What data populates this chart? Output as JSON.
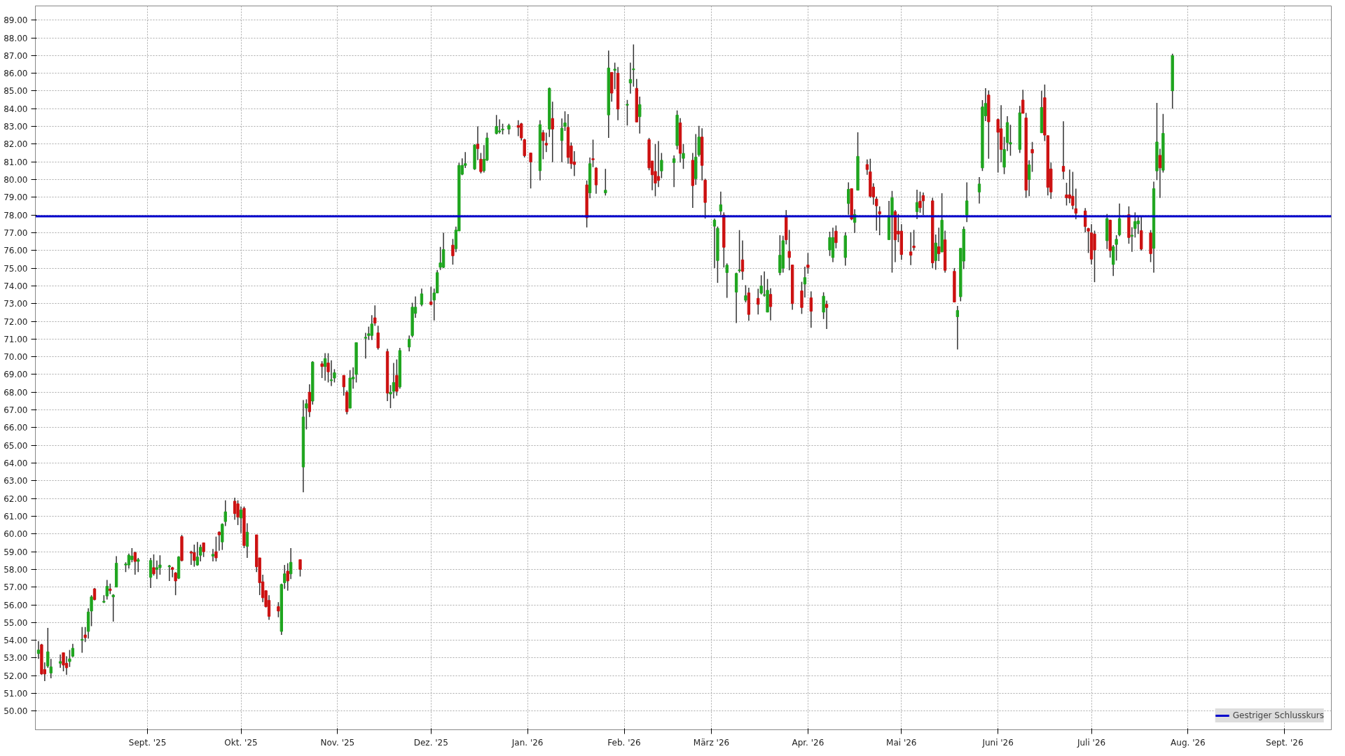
{
  "chart_data": {
    "type": "candlestick",
    "x": [
      "2025-07-28",
      "2025-07-29",
      "2025-07-30",
      "2025-07-31",
      "2025-08-01",
      "2025-08-04",
      "2025-08-05",
      "2025-08-06",
      "2025-08-07",
      "2025-08-08",
      "2025-08-11",
      "2025-08-12",
      "2025-08-13",
      "2025-08-14",
      "2025-08-15",
      "2025-08-18",
      "2025-08-19",
      "2025-08-20",
      "2025-08-21",
      "2025-08-22",
      "2025-08-25",
      "2025-08-26",
      "2025-08-27",
      "2025-08-28",
      "2025-08-29",
      "2025-09-02",
      "2025-09-03",
      "2025-09-04",
      "2025-09-05",
      "2025-09-08",
      "2025-09-09",
      "2025-09-10",
      "2025-09-11",
      "2025-09-12",
      "2025-09-15",
      "2025-09-16",
      "2025-09-17",
      "2025-09-18",
      "2025-09-19",
      "2025-09-22",
      "2025-09-23",
      "2025-09-24",
      "2025-09-25",
      "2025-09-26",
      "2025-09-29",
      "2025-09-30",
      "2025-10-01",
      "2025-10-02",
      "2025-10-03",
      "2025-10-06",
      "2025-10-07",
      "2025-10-08",
      "2025-10-09",
      "2025-10-10",
      "2025-10-13",
      "2025-10-14",
      "2025-10-15",
      "2025-10-16",
      "2025-10-17",
      "2025-10-20",
      "2025-10-21",
      "2025-10-22",
      "2025-10-23",
      "2025-10-24",
      "2025-10-27",
      "2025-10-28",
      "2025-10-29",
      "2025-10-30",
      "2025-10-31",
      "2025-11-03",
      "2025-11-04",
      "2025-11-05",
      "2025-11-06",
      "2025-11-07",
      "2025-11-10",
      "2025-11-11",
      "2025-11-12",
      "2025-11-13",
      "2025-11-14",
      "2025-11-17",
      "2025-11-18",
      "2025-11-19",
      "2025-11-20",
      "2025-11-21",
      "2025-11-24",
      "2025-11-25",
      "2025-11-26",
      "2025-11-28",
      "2025-12-01",
      "2025-12-02",
      "2025-12-03",
      "2025-12-04",
      "2025-12-05",
      "2025-12-08",
      "2025-12-09",
      "2025-12-10",
      "2025-12-11",
      "2025-12-12",
      "2025-12-15",
      "2025-12-16",
      "2025-12-17",
      "2025-12-18",
      "2025-12-19",
      "2025-12-22",
      "2025-12-23",
      "2025-12-24",
      "2025-12-26",
      "2025-12-29",
      "2025-12-30",
      "2025-12-31",
      "2026-01-02",
      "2026-01-05",
      "2026-01-06",
      "2026-01-07",
      "2026-01-08",
      "2026-01-09",
      "2026-01-12",
      "2026-01-13",
      "2026-01-14",
      "2026-01-15",
      "2026-01-16",
      "2026-01-20",
      "2026-01-21",
      "2026-01-22",
      "2026-01-23",
      "2026-01-26",
      "2026-01-27",
      "2026-01-28",
      "2026-01-29",
      "2026-01-30",
      "2026-02-02",
      "2026-02-03",
      "2026-02-04",
      "2026-02-05",
      "2026-02-06",
      "2026-02-09",
      "2026-02-10",
      "2026-02-11",
      "2026-02-12",
      "2026-02-13",
      "2026-02-17",
      "2026-02-18",
      "2026-02-19",
      "2026-02-20",
      "2026-02-23",
      "2026-02-24",
      "2026-02-25",
      "2026-02-26",
      "2026-02-27",
      "2026-03-02",
      "2026-03-03",
      "2026-03-04",
      "2026-03-05",
      "2026-03-06",
      "2026-03-09",
      "2026-03-10",
      "2026-03-11",
      "2026-03-12",
      "2026-03-13",
      "2026-03-16",
      "2026-03-17",
      "2026-03-18",
      "2026-03-19",
      "2026-03-20",
      "2026-03-23",
      "2026-03-24",
      "2026-03-25",
      "2026-03-26",
      "2026-03-27",
      "2026-03-30",
      "2026-03-31",
      "2026-04-01",
      "2026-04-02",
      "2026-04-06",
      "2026-04-07",
      "2026-04-08",
      "2026-04-09",
      "2026-04-10",
      "2026-04-13",
      "2026-04-14",
      "2026-04-15",
      "2026-04-16",
      "2026-04-17",
      "2026-04-20",
      "2026-04-21",
      "2026-04-22",
      "2026-04-23",
      "2026-04-24",
      "2026-04-27",
      "2026-04-28",
      "2026-04-29",
      "2026-04-30",
      "2026-05-01",
      "2026-05-04",
      "2026-05-05",
      "2026-05-06",
      "2026-05-07",
      "2026-05-08",
      "2026-05-11",
      "2026-05-12",
      "2026-05-13",
      "2026-05-14",
      "2026-05-15",
      "2026-05-18",
      "2026-05-19",
      "2026-05-20",
      "2026-05-21",
      "2026-05-22",
      "2026-05-26",
      "2026-05-27",
      "2026-05-28",
      "2026-05-29",
      "2026-06-01",
      "2026-06-02",
      "2026-06-03",
      "2026-06-04",
      "2026-06-05",
      "2026-06-08",
      "2026-06-09",
      "2026-06-10",
      "2026-06-11",
      "2026-06-12",
      "2026-06-15",
      "2026-06-16",
      "2026-06-17",
      "2026-06-18",
      "2026-06-22",
      "2026-06-23",
      "2026-06-24",
      "2026-06-25",
      "2026-06-26",
      "2026-06-29",
      "2026-06-30",
      "2026-07-01",
      "2026-07-02",
      "2026-07-06",
      "2026-07-07",
      "2026-07-08",
      "2026-07-09",
      "2026-07-10",
      "2026-07-13",
      "2026-07-14",
      "2026-07-15",
      "2026-07-16",
      "2026-07-17",
      "2026-07-20",
      "2026-07-21",
      "2026-07-22",
      "2026-07-23",
      "2026-07-24",
      "2026-07-27"
    ],
    "ohlc": [
      [
        53.25,
        53.95,
        52.95,
        53.45
      ],
      [
        53.75,
        53.8,
        52.05,
        52.1
      ],
      [
        52.35,
        52.75,
        51.7,
        52.1
      ],
      [
        52.55,
        54.7,
        52.45,
        53.35
      ],
      [
        52.15,
        52.95,
        51.85,
        52.5
      ],
      [
        52.7,
        53.2,
        52.45,
        52.8
      ],
      [
        53.3,
        53.3,
        52.25,
        52.6
      ],
      [
        52.7,
        53.1,
        52.05,
        52.45
      ],
      [
        52.8,
        53.45,
        52.5,
        52.95
      ],
      [
        53.1,
        53.8,
        53.05,
        53.55
      ],
      [
        54.0,
        54.75,
        53.3,
        54.05
      ],
      [
        54.3,
        54.75,
        53.9,
        54.15
      ],
      [
        54.5,
        55.8,
        54.1,
        55.6
      ],
      [
        55.65,
        56.55,
        54.8,
        56.45
      ],
      [
        56.9,
        56.95,
        56.25,
        56.3
      ],
      [
        56.15,
        56.55,
        56.1,
        56.2
      ],
      [
        56.5,
        57.4,
        56.3,
        57.05
      ],
      [
        56.9,
        57.2,
        56.6,
        56.8
      ],
      [
        56.45,
        56.6,
        55.05,
        56.55
      ],
      [
        57.0,
        58.75,
        57.0,
        58.35
      ],
      [
        58.25,
        58.4,
        57.85,
        58.3
      ],
      [
        58.25,
        58.9,
        58.05,
        58.8
      ],
      [
        58.55,
        59.2,
        58.4,
        58.75
      ],
      [
        58.95,
        59.0,
        57.7,
        58.45
      ],
      [
        58.45,
        58.65,
        57.85,
        58.55
      ],
      [
        57.55,
        58.65,
        56.95,
        58.5
      ],
      [
        58.1,
        58.85,
        57.65,
        57.75
      ],
      [
        58.0,
        58.5,
        57.45,
        58.1
      ],
      [
        58.1,
        58.8,
        57.7,
        58.25
      ],
      [
        58.15,
        58.25,
        57.35,
        58.2
      ],
      [
        58.1,
        58.15,
        57.55,
        58.0
      ],
      [
        57.8,
        57.85,
        56.55,
        57.35
      ],
      [
        57.5,
        58.75,
        57.45,
        58.7
      ],
      [
        59.85,
        59.95,
        58.45,
        58.5
      ],
      [
        58.99,
        59.05,
        58.25,
        58.92
      ],
      [
        58.95,
        59.4,
        58.15,
        58.5
      ],
      [
        58.25,
        59.55,
        58.2,
        58.7
      ],
      [
        58.8,
        59.4,
        58.45,
        59.25
      ],
      [
        59.5,
        59.5,
        58.7,
        59.0
      ],
      [
        58.75,
        59.15,
        58.45,
        58.85
      ],
      [
        59.0,
        59.85,
        58.45,
        58.65
      ],
      [
        60.1,
        60.15,
        59.05,
        59.95
      ],
      [
        59.55,
        60.6,
        59.1,
        60.55
      ],
      [
        60.7,
        61.9,
        60.45,
        61.25
      ],
      [
        61.85,
        62.05,
        60.8,
        61.15
      ],
      [
        61.7,
        61.9,
        60.5,
        60.95
      ],
      [
        60.9,
        61.55,
        60.05,
        61.35
      ],
      [
        61.45,
        61.55,
        59.2,
        59.35
      ],
      [
        59.3,
        60.6,
        58.65,
        60.1
      ],
      [
        59.95,
        59.95,
        57.85,
        58.15
      ],
      [
        58.65,
        58.65,
        56.55,
        57.25
      ],
      [
        57.3,
        57.7,
        56.15,
        56.4
      ],
      [
        56.8,
        56.8,
        55.85,
        55.9
      ],
      [
        56.25,
        56.55,
        55.15,
        55.35
      ],
      [
        55.9,
        56.15,
        55.3,
        55.65
      ],
      [
        54.5,
        57.2,
        54.3,
        57.15
      ],
      [
        57.25,
        58.25,
        56.9,
        57.75
      ],
      [
        57.9,
        58.35,
        56.8,
        57.35
      ],
      [
        57.75,
        59.2,
        57.45,
        58.4
      ],
      [
        58.55,
        58.55,
        57.6,
        58.0
      ],
      [
        63.78,
        67.56,
        62.35,
        66.6
      ],
      [
        67.1,
        67.6,
        65.9,
        67.35
      ],
      [
        68.0,
        68.45,
        66.6,
        66.9
      ],
      [
        67.5,
        69.75,
        67.3,
        69.7
      ],
      [
        69.6,
        69.75,
        68.8,
        69.45
      ],
      [
        69.45,
        70.2,
        68.65,
        69.9
      ],
      [
        69.65,
        70.2,
        68.55,
        69.15
      ],
      [
        68.65,
        69.8,
        68.35,
        68.7
      ],
      [
        68.8,
        69.3,
        68.55,
        69.1
      ],
      [
        68.95,
        68.95,
        67.8,
        68.3
      ],
      [
        68.0,
        68.1,
        66.75,
        66.9
      ],
      [
        67.1,
        69.25,
        67.1,
        68.8
      ],
      [
        68.75,
        69.4,
        68.2,
        68.85
      ],
      [
        69.0,
        70.8,
        68.55,
        70.8
      ],
      [
        71.05,
        71.35,
        69.9,
        71.1
      ],
      [
        71.2,
        71.7,
        70.95,
        71.3
      ],
      [
        71.2,
        72.35,
        70.95,
        71.85
      ],
      [
        72.2,
        72.9,
        71.75,
        71.9
      ],
      [
        71.35,
        71.75,
        70.4,
        70.5
      ],
      [
        70.3,
        70.45,
        67.5,
        67.95
      ],
      [
        67.9,
        68.4,
        67.1,
        68.0
      ],
      [
        68.05,
        69.65,
        67.65,
        68.55
      ],
      [
        68.95,
        69.85,
        67.8,
        68.05
      ],
      [
        68.3,
        70.5,
        68.2,
        70.35
      ],
      [
        70.55,
        71.2,
        70.3,
        71.0
      ],
      [
        71.2,
        73.05,
        71.1,
        72.8
      ],
      [
        72.45,
        73.4,
        72.2,
        72.8
      ],
      [
        72.95,
        73.85,
        72.85,
        73.55
      ],
      [
        73.1,
        73.95,
        72.9,
        72.95
      ],
      [
        73.2,
        73.85,
        72.05,
        73.6
      ],
      [
        73.6,
        74.9,
        73.6,
        74.75
      ],
      [
        75.05,
        76.2,
        74.9,
        75.3
      ],
      [
        75.05,
        77.0,
        75.0,
        76.05
      ],
      [
        76.3,
        76.65,
        75.2,
        75.7
      ],
      [
        76.1,
        77.35,
        75.9,
        77.15
      ],
      [
        77.1,
        80.95,
        77.1,
        80.8
      ],
      [
        80.3,
        81.2,
        80.25,
        80.8
      ],
      [
        80.8,
        81.55,
        80.65,
        80.9
      ],
      [
        80.6,
        82.0,
        80.55,
        81.95
      ],
      [
        82.0,
        83.0,
        81.1,
        81.75
      ],
      [
        81.15,
        81.5,
        80.35,
        80.45
      ],
      [
        80.5,
        81.95,
        80.4,
        81.15
      ],
      [
        81.1,
        82.65,
        81.05,
        82.35
      ],
      [
        82.6,
        83.65,
        82.55,
        83.0
      ],
      [
        82.7,
        83.4,
        82.6,
        82.75
      ],
      [
        82.8,
        83.15,
        82.55,
        82.85
      ],
      [
        82.85,
        83.15,
        82.55,
        83.05
      ],
      [
        83.05,
        83.35,
        82.45,
        82.95
      ],
      [
        83.15,
        83.2,
        82.2,
        82.35
      ],
      [
        82.25,
        82.3,
        81.25,
        81.35
      ],
      [
        81.5,
        81.5,
        79.5,
        81.0
      ],
      [
        80.5,
        83.35,
        79.95,
        83.1
      ],
      [
        82.65,
        82.8,
        81.15,
        82.2
      ],
      [
        82.05,
        82.65,
        81.55,
        81.95
      ],
      [
        82.85,
        85.2,
        82.4,
        85.15
      ],
      [
        83.45,
        84.4,
        80.98,
        82.85
      ],
      [
        82.2,
        83.45,
        80.98,
        82.9
      ],
      [
        83.0,
        83.85,
        82.75,
        83.2
      ],
      [
        82.95,
        83.7,
        80.9,
        81.25
      ],
      [
        81.9,
        82.1,
        80.6,
        80.9
      ],
      [
        81.0,
        81.6,
        80.2,
        80.85
      ],
      [
        79.7,
        79.95,
        77.3,
        77.85
      ],
      [
        79.25,
        81.25,
        78.95,
        80.9
      ],
      [
        81.18,
        82.25,
        80.7,
        81.12
      ],
      [
        80.65,
        80.7,
        79.2,
        79.7
      ],
      [
        79.25,
        80.6,
        79.1,
        79.4
      ],
      [
        83.65,
        87.28,
        82.35,
        86.3
      ],
      [
        86.05,
        86.05,
        84.4,
        84.88
      ],
      [
        86.17,
        86.6,
        85.1,
        86.23
      ],
      [
        86.0,
        86.35,
        83.35,
        83.98
      ],
      [
        84.2,
        84.5,
        83.05,
        84.25
      ],
      [
        85.45,
        86.6,
        84.85,
        85.65
      ],
      [
        86.2,
        87.63,
        85.25,
        86.25
      ],
      [
        85.15,
        85.68,
        83.25,
        83.25
      ],
      [
        83.55,
        84.68,
        82.6,
        84.23
      ],
      [
        82.25,
        82.35,
        80.53,
        80.66
      ],
      [
        81.05,
        81.05,
        79.4,
        80.27
      ],
      [
        80.46,
        82.0,
        79.06,
        79.8
      ],
      [
        80.18,
        82.18,
        79.58,
        79.95
      ],
      [
        80.49,
        81.5,
        80.08,
        81.09
      ],
      [
        80.96,
        81.37,
        79.58,
        81.18
      ],
      [
        81.92,
        83.9,
        81.7,
        83.64
      ],
      [
        83.2,
        83.47,
        80.96,
        81.48
      ],
      [
        81.2,
        82.0,
        80.6,
        81.48
      ],
      [
        81.09,
        81.5,
        78.4,
        79.66
      ],
      [
        80.05,
        82.57,
        79.7,
        81.27
      ],
      [
        81.4,
        83.03,
        81.3,
        82.4
      ],
      [
        82.4,
        82.9,
        79.95,
        80.8
      ],
      [
        79.97,
        80.05,
        77.8,
        78.71
      ],
      [
        77.37,
        77.8,
        75.0,
        77.71
      ],
      [
        75.43,
        77.35,
        74.17,
        77.25
      ],
      [
        78.22,
        79.32,
        78.0,
        78.58
      ],
      [
        78.0,
        78.15,
        75.04,
        76.18
      ],
      [
        74.75,
        75.27,
        73.33,
        75.17
      ],
      [
        73.65,
        74.75,
        71.9,
        74.7
      ],
      [
        74.86,
        77.15,
        74.75,
        74.9
      ],
      [
        75.47,
        76.57,
        74.34,
        74.82
      ],
      [
        73.19,
        74.04,
        73.07,
        73.45
      ],
      [
        73.61,
        73.9,
        72.03,
        72.39
      ],
      [
        73.3,
        73.84,
        72.39,
        72.96
      ],
      [
        73.59,
        74.6,
        73.52,
        74.0
      ],
      [
        73.47,
        74.82,
        73.39,
        73.5
      ],
      [
        72.52,
        74.39,
        72.52,
        73.75
      ],
      [
        73.52,
        73.87,
        72.05,
        72.83
      ],
      [
        74.75,
        76.86,
        74.6,
        75.73
      ],
      [
        75.0,
        76.83,
        74.75,
        76.55
      ],
      [
        77.9,
        78.28,
        76.34,
        76.6
      ],
      [
        75.95,
        77.16,
        74.88,
        75.6
      ],
      [
        75.18,
        75.2,
        72.65,
        73.0
      ],
      [
        73.72,
        74.23,
        72.42,
        72.78
      ],
      [
        74.1,
        75.08,
        73.35,
        74.47
      ],
      [
        75.18,
        75.86,
        74.69,
        75.04
      ],
      [
        73.33,
        73.69,
        71.64,
        72.57
      ],
      [
        72.52,
        73.64,
        72.13,
        73.42
      ],
      [
        72.96,
        73.17,
        71.57,
        72.78
      ],
      [
        76.03,
        77.06,
        75.69,
        76.73
      ],
      [
        75.6,
        77.29,
        75.34,
        76.73
      ],
      [
        77.09,
        77.41,
        76.12,
        76.44
      ],
      [
        75.6,
        77.03,
        75.14,
        76.83
      ],
      [
        78.65,
        79.84,
        78.02,
        79.45
      ],
      [
        79.49,
        79.49,
        77.71,
        77.77
      ],
      [
        77.58,
        78.32,
        76.99,
        78.03
      ],
      [
        79.4,
        82.67,
        79.4,
        81.31
      ],
      [
        80.85,
        81.14,
        80.27,
        80.57
      ],
      [
        80.44,
        81.18,
        78.97,
        79.06
      ],
      [
        79.58,
        79.79,
        78.58,
        79.01
      ],
      [
        78.9,
        79.04,
        77.12,
        78.52
      ],
      [
        78.19,
        78.49,
        76.86,
        78.06
      ],
      [
        76.61,
        78.8,
        76.61,
        77.93
      ],
      [
        78.0,
        79.36,
        74.75,
        78.97
      ],
      [
        78.19,
        78.28,
        75.34,
        76.6
      ],
      [
        77.09,
        78.06,
        76.47,
        76.93
      ],
      [
        77.09,
        77.48,
        75.47,
        75.77
      ],
      [
        75.92,
        77.03,
        75.17,
        75.73
      ],
      [
        76.25,
        77.16,
        75.99,
        76.16
      ],
      [
        78.19,
        79.43,
        77.77,
        78.71
      ],
      [
        78.78,
        79.32,
        78.13,
        78.41
      ],
      [
        79.1,
        79.27,
        78.0,
        78.8
      ],
      [
        78.8,
        78.97,
        75.01,
        75.3
      ],
      [
        75.43,
        76.9,
        74.91,
        76.42
      ],
      [
        76.21,
        77.29,
        75.4,
        75.82
      ],
      [
        75.92,
        79.23,
        75.9,
        77.71
      ],
      [
        76.6,
        77.12,
        74.75,
        74.88
      ],
      [
        74.82,
        75.01,
        73.07,
        73.09
      ],
      [
        72.26,
        72.87,
        70.41,
        72.61
      ],
      [
        73.39,
        76.12,
        73.13,
        76.12
      ],
      [
        75.4,
        77.35,
        74.95,
        77.2
      ],
      [
        78.0,
        79.84,
        77.6,
        78.8
      ],
      [
        79.3,
        80.14,
        78.65,
        79.75
      ],
      [
        80.66,
        84.49,
        80.49,
        84.1
      ],
      [
        83.6,
        85.16,
        83.3,
        84.3
      ],
      [
        84.77,
        85.03,
        81.18,
        83.26
      ],
      [
        83.39,
        83.45,
        80.4,
        82.67
      ],
      [
        82.87,
        84.2,
        80.98,
        81.7
      ],
      [
        80.7,
        82.41,
        80.31,
        81.7
      ],
      [
        82.09,
        83.58,
        81.61,
        83.22
      ],
      [
        82.0,
        83.09,
        81.35,
        82.09
      ],
      [
        81.7,
        84.16,
        81.5,
        83.77
      ],
      [
        84.49,
        85.07,
        83.74,
        83.74
      ],
      [
        83.48,
        83.77,
        78.97,
        79.4
      ],
      [
        80.01,
        81.09,
        79.06,
        80.83
      ],
      [
        81.7,
        82.13,
        80.44,
        81.5
      ],
      [
        82.64,
        85.01,
        82.64,
        84.07
      ],
      [
        84.62,
        85.37,
        82.18,
        82.51
      ],
      [
        82.48,
        82.48,
        79.1,
        79.56
      ],
      [
        80.6,
        80.96,
        78.91,
        79.3
      ],
      [
        80.75,
        83.29,
        80.01,
        80.46
      ],
      [
        79.14,
        79.82,
        78.54,
        78.97
      ],
      [
        79.14,
        80.57,
        78.67,
        78.95
      ],
      [
        79.06,
        80.44,
        78.32,
        78.54
      ],
      [
        78.36,
        79.49,
        77.76,
        78.1
      ],
      [
        78.23,
        78.39,
        77.02,
        77.35
      ],
      [
        77.24,
        77.28,
        75.86,
        77.09
      ],
      [
        76.99,
        77.48,
        75.21,
        75.51
      ],
      [
        76.93,
        77.12,
        74.21,
        76.03
      ],
      [
        76.55,
        78.06,
        76.08,
        77.8
      ],
      [
        77.71,
        77.74,
        75.6,
        75.99
      ],
      [
        75.21,
        76.31,
        74.56,
        76.21
      ],
      [
        76.34,
        76.86,
        75.43,
        76.63
      ],
      [
        76.89,
        78.65,
        76.8,
        77.8
      ],
      [
        78.02,
        78.49,
        76.38,
        76.73
      ],
      [
        76.8,
        77.32,
        75.92,
        76.86
      ],
      [
        77.24,
        78.15,
        76.73,
        77.63
      ],
      [
        77.5,
        77.97,
        76.93,
        77.67
      ],
      [
        77.12,
        77.89,
        75.99,
        76.08
      ],
      [
        76.99,
        77.15,
        75.34,
        75.82
      ],
      [
        76.12,
        79.88,
        74.75,
        79.49
      ],
      [
        80.49,
        84.33,
        79.97,
        82.12
      ],
      [
        81.37,
        81.74,
        78.97,
        80.66
      ],
      [
        80.53,
        83.71,
        80.4,
        82.61
      ],
      [
        85.01,
        87.1,
        84.0,
        87.0
      ]
    ],
    "xlim": [
      "2025-07-27",
      "2026-09-16"
    ],
    "xticks": [
      {
        "value": "2025-09-01",
        "label": "Sept. '25"
      },
      {
        "value": "2025-10-01",
        "label": "Okt. '25"
      },
      {
        "value": "2025-11-01",
        "label": "Nov. '25"
      },
      {
        "value": "2025-12-01",
        "label": "Dez. '25"
      },
      {
        "value": "2026-01-01",
        "label": "Jan. '26"
      },
      {
        "value": "2026-02-01",
        "label": "Feb. '26"
      },
      {
        "value": "2026-03-01",
        "label": "März '26"
      },
      {
        "value": "2026-04-01",
        "label": "Apr. '26"
      },
      {
        "value": "2026-05-01",
        "label": "Mai '26"
      },
      {
        "value": "2026-06-01",
        "label": "Juni '26"
      },
      {
        "value": "2026-07-01",
        "label": "Juli '26"
      },
      {
        "value": "2026-08-01",
        "label": "Aug. '26"
      },
      {
        "value": "2026-09-01",
        "label": "Sept. '26"
      }
    ],
    "ylim": [
      48.95,
      89.8
    ],
    "yticks": [
      {
        "value": 50,
        "label": "50.00"
      },
      {
        "value": 51,
        "label": "51.00"
      },
      {
        "value": 52,
        "label": "52.00"
      },
      {
        "value": 53,
        "label": "53.00"
      },
      {
        "value": 54,
        "label": "54.00"
      },
      {
        "value": 55,
        "label": "55.00"
      },
      {
        "value": 56,
        "label": "56.00"
      },
      {
        "value": 57,
        "label": "57.00"
      },
      {
        "value": 58,
        "label": "58.00"
      },
      {
        "value": 59,
        "label": "59.00"
      },
      {
        "value": 60,
        "label": "60.00"
      },
      {
        "value": 61,
        "label": "61.00"
      },
      {
        "value": 62,
        "label": "62.00"
      },
      {
        "value": 63,
        "label": "63.00"
      },
      {
        "value": 64,
        "label": "64.00"
      },
      {
        "value": 65,
        "label": "65.00"
      },
      {
        "value": 66,
        "label": "66.00"
      },
      {
        "value": 67,
        "label": "67.00"
      },
      {
        "value": 68,
        "label": "68.00"
      },
      {
        "value": 69,
        "label": "69.00"
      },
      {
        "value": 70,
        "label": "70.00"
      },
      {
        "value": 71,
        "label": "71.00"
      },
      {
        "value": 72,
        "label": "72.00"
      },
      {
        "value": 73,
        "label": "73.00"
      },
      {
        "value": 74,
        "label": "74.00"
      },
      {
        "value": 75,
        "label": "75.00"
      },
      {
        "value": 76,
        "label": "76.00"
      },
      {
        "value": 77,
        "label": "77.00"
      },
      {
        "value": 78,
        "label": "78.00"
      },
      {
        "value": 79,
        "label": "79.00"
      },
      {
        "value": 80,
        "label": "80.00"
      },
      {
        "value": 81,
        "label": "81.00"
      },
      {
        "value": 82,
        "label": "82.00"
      },
      {
        "value": 83,
        "label": "83.00"
      },
      {
        "value": 84,
        "label": "84.00"
      },
      {
        "value": 85,
        "label": "85.00"
      },
      {
        "value": 86,
        "label": "86.00"
      },
      {
        "value": 87,
        "label": "87.00"
      },
      {
        "value": 88,
        "label": "88.00"
      },
      {
        "value": 89,
        "label": "89.00"
      }
    ],
    "ref_lines": [
      {
        "axis": "y",
        "value": 77.93,
        "label": "Gestriger Schlusskurs",
        "color": "#0000cc",
        "line_style": "solid"
      }
    ],
    "grid": true,
    "legend": "bottom right"
  }
}
